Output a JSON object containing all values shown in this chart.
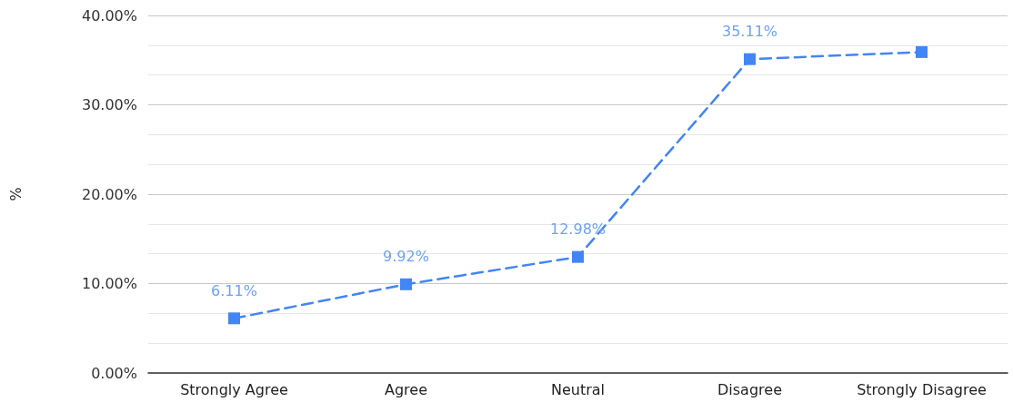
{
  "chart_data": {
    "type": "line",
    "ylabel": "%",
    "categories": [
      "Strongly Agree",
      "Agree",
      "Neutral",
      "Disagree",
      "Strongly Disagree"
    ],
    "series": [
      {
        "color": "#4285f4",
        "values": [
          6.11,
          9.92,
          12.98,
          35.11,
          35.9
        ],
        "value_labels": [
          "6.11%",
          "9.92%",
          "12.98%",
          "35.11%",
          null
        ]
      }
    ],
    "ylim": [
      0,
      40
    ],
    "yticks": [
      {
        "value": 0,
        "label": "0.00%"
      },
      {
        "value": 10,
        "label": "10.00%"
      },
      {
        "value": 20,
        "label": "20.00%"
      },
      {
        "value": 30,
        "label": "30.00%"
      },
      {
        "value": 40,
        "label": "40.00%"
      }
    ],
    "grid": "y",
    "marker": "square",
    "line_style": "dashed"
  }
}
